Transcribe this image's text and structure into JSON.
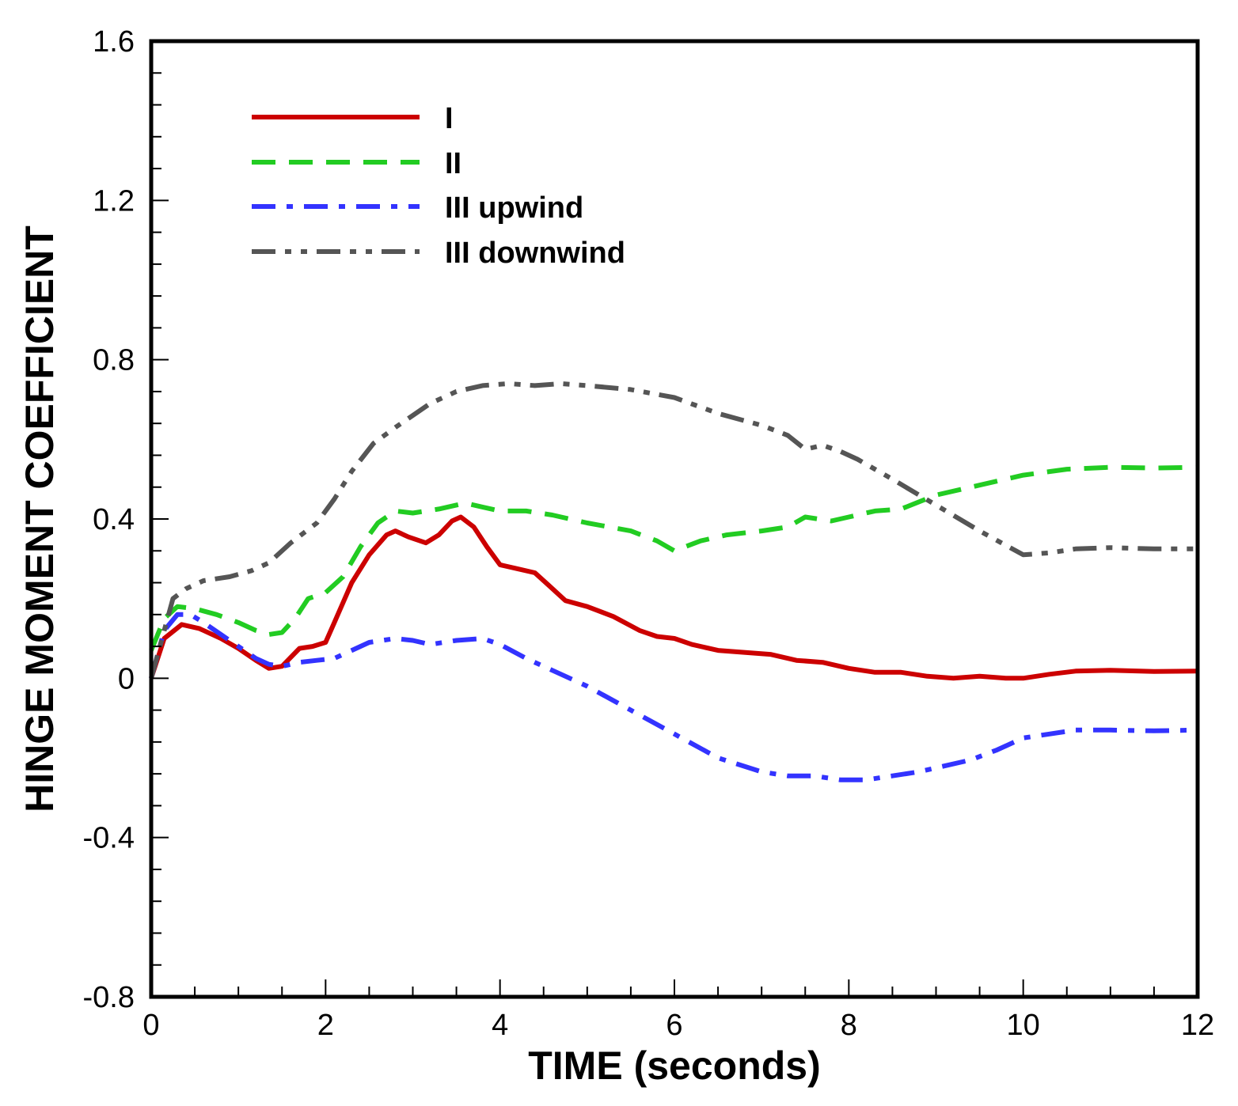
{
  "chart_data": {
    "type": "line",
    "title": "",
    "xlabel": "TIME (seconds)",
    "ylabel": "HINGE MOMENT COEFFICIENT",
    "xlim": [
      0,
      12
    ],
    "ylim": [
      -0.8,
      1.6
    ],
    "x_ticks": [
      0,
      2,
      4,
      6,
      8,
      10,
      12
    ],
    "x_tick_labels": [
      "0",
      "2",
      "4",
      "6",
      "8",
      "10",
      "12"
    ],
    "y_ticks": [
      -0.8,
      -0.4,
      0,
      0.4,
      0.8,
      1.2,
      1.6
    ],
    "y_tick_labels": [
      "-0.8",
      "-0.4",
      "0",
      "0.4",
      "0.8",
      "1.2",
      "1.6"
    ],
    "grid": false,
    "legend_position": "top-left",
    "series": [
      {
        "name": "I",
        "color": "#cc0000",
        "style": "solid",
        "x": [
          0,
          0.15,
          0.35,
          0.55,
          0.8,
          1.0,
          1.2,
          1.35,
          1.5,
          1.7,
          1.85,
          2.0,
          2.1,
          2.3,
          2.5,
          2.7,
          2.8,
          2.95,
          3.15,
          3.3,
          3.45,
          3.55,
          3.7,
          3.85,
          4.0,
          4.2,
          4.4,
          4.55,
          4.75,
          5.0,
          5.3,
          5.6,
          5.8,
          6.0,
          6.2,
          6.5,
          6.8,
          7.1,
          7.4,
          7.7,
          8.0,
          8.3,
          8.6,
          8.9,
          9.2,
          9.5,
          9.8,
          10.0,
          10.3,
          10.6,
          11.0,
          11.5,
          12.0
        ],
        "values": [
          0.0,
          0.1,
          0.135,
          0.125,
          0.1,
          0.075,
          0.045,
          0.025,
          0.03,
          0.075,
          0.08,
          0.09,
          0.14,
          0.24,
          0.31,
          0.36,
          0.37,
          0.355,
          0.34,
          0.36,
          0.395,
          0.405,
          0.38,
          0.33,
          0.285,
          0.275,
          0.265,
          0.235,
          0.195,
          0.18,
          0.155,
          0.12,
          0.105,
          0.1,
          0.085,
          0.07,
          0.065,
          0.06,
          0.045,
          0.04,
          0.025,
          0.015,
          0.015,
          0.005,
          0.0,
          0.005,
          0.0,
          0.0,
          0.01,
          0.018,
          0.02,
          0.017,
          0.018
        ]
      },
      {
        "name": "II",
        "color": "#22cc22",
        "style": "dashed",
        "x": [
          0,
          0.15,
          0.3,
          0.5,
          0.75,
          1.0,
          1.2,
          1.35,
          1.5,
          1.65,
          1.8,
          2.0,
          2.2,
          2.4,
          2.6,
          2.8,
          3.0,
          3.3,
          3.6,
          3.8,
          4.0,
          4.3,
          4.6,
          5.0,
          5.5,
          5.8,
          6.0,
          6.3,
          6.6,
          7.0,
          7.3,
          7.5,
          7.8,
          8.0,
          8.3,
          8.6,
          9.0,
          9.5,
          10.0,
          10.5,
          11.0,
          11.5,
          12.0
        ],
        "values": [
          0.07,
          0.15,
          0.18,
          0.175,
          0.16,
          0.14,
          0.12,
          0.11,
          0.115,
          0.15,
          0.2,
          0.215,
          0.255,
          0.33,
          0.39,
          0.42,
          0.415,
          0.425,
          0.44,
          0.43,
          0.42,
          0.42,
          0.41,
          0.39,
          0.37,
          0.345,
          0.32,
          0.345,
          0.36,
          0.37,
          0.38,
          0.405,
          0.395,
          0.405,
          0.42,
          0.425,
          0.46,
          0.485,
          0.51,
          0.525,
          0.53,
          0.528,
          0.53
        ]
      },
      {
        "name": "III upwind",
        "color": "#3333ff",
        "style": "dash-dot",
        "x": [
          0,
          0.15,
          0.3,
          0.45,
          0.6,
          0.8,
          1.0,
          1.2,
          1.35,
          1.5,
          1.7,
          1.9,
          2.1,
          2.3,
          2.5,
          2.8,
          3.0,
          3.2,
          3.5,
          3.8,
          4.0,
          4.3,
          4.6,
          5.0,
          5.5,
          6.0,
          6.5,
          7.0,
          7.3,
          7.6,
          7.9,
          8.2,
          8.5,
          8.8,
          9.1,
          9.4,
          9.7,
          10.0,
          10.3,
          10.6,
          11.0,
          11.5,
          12.0
        ],
        "values": [
          0.0,
          0.12,
          0.16,
          0.16,
          0.14,
          0.11,
          0.08,
          0.05,
          0.035,
          0.03,
          0.04,
          0.045,
          0.05,
          0.07,
          0.09,
          0.1,
          0.095,
          0.085,
          0.095,
          0.1,
          0.085,
          0.05,
          0.02,
          -0.02,
          -0.08,
          -0.14,
          -0.2,
          -0.235,
          -0.245,
          -0.245,
          -0.255,
          -0.255,
          -0.245,
          -0.235,
          -0.22,
          -0.205,
          -0.18,
          -0.15,
          -0.14,
          -0.13,
          -0.13,
          -0.132,
          -0.13
        ]
      },
      {
        "name": "III downwind",
        "color": "#555555",
        "style": "dash-dot-dot",
        "x": [
          0,
          0.1,
          0.25,
          0.4,
          0.6,
          0.9,
          1.15,
          1.35,
          1.6,
          1.9,
          2.1,
          2.3,
          2.55,
          2.8,
          3.0,
          3.2,
          3.5,
          3.8,
          4.1,
          4.4,
          4.7,
          5.0,
          5.5,
          6.0,
          6.5,
          7.0,
          7.3,
          7.5,
          7.7,
          7.9,
          8.1,
          8.5,
          9.0,
          9.5,
          10.0,
          10.3,
          10.6,
          11.0,
          11.5,
          12.0
        ],
        "values": [
          0.0,
          0.08,
          0.2,
          0.225,
          0.245,
          0.255,
          0.27,
          0.29,
          0.34,
          0.39,
          0.45,
          0.52,
          0.59,
          0.63,
          0.66,
          0.69,
          0.72,
          0.735,
          0.74,
          0.735,
          0.74,
          0.735,
          0.725,
          0.705,
          0.665,
          0.635,
          0.61,
          0.575,
          0.585,
          0.57,
          0.55,
          0.5,
          0.435,
          0.37,
          0.31,
          0.315,
          0.325,
          0.328,
          0.325,
          0.325
        ]
      }
    ]
  }
}
